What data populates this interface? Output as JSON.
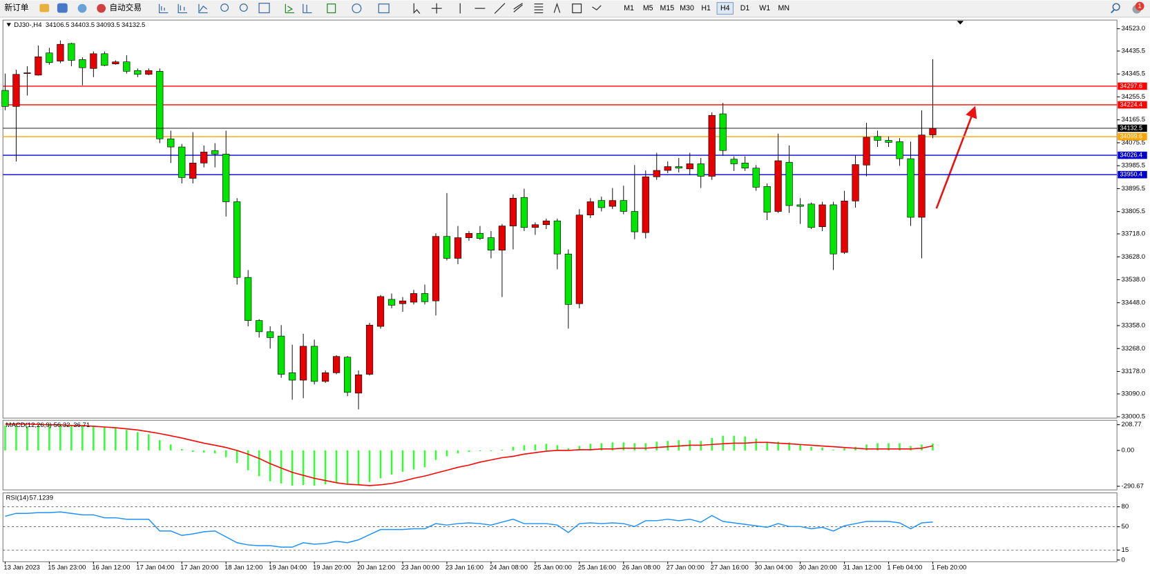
{
  "toolbar": {
    "new_order": "新订单",
    "auto_trading": "自动交易",
    "timeframes": [
      "M1",
      "M5",
      "M15",
      "M30",
      "H1",
      "H4",
      "D1",
      "W1",
      "MN"
    ],
    "active_timeframe": "H4",
    "notification_count": "1"
  },
  "chart_data": [
    {
      "type": "candlestick",
      "symbol": "DJ30-,H4",
      "up_color": "#e60000",
      "down_color": "#00e600",
      "categories": [
        "13 Jan 2023",
        null,
        null,
        null,
        "15 Jan 23:00",
        null,
        null,
        null,
        "16 Jan 12:00",
        null,
        null,
        null,
        "17 Jan 04:00",
        null,
        null,
        null,
        "17 Jan 20:00",
        null,
        null,
        null,
        "18 Jan 12:00",
        null,
        null,
        null,
        "19 Jan 04:00",
        null,
        null,
        null,
        "19 Jan 20:00",
        null,
        null,
        null,
        "20 Jan 12:00",
        null,
        null,
        null,
        "23 Jan 00:00",
        null,
        null,
        null,
        "23 Jan 16:00",
        null,
        null,
        null,
        "24 Jan 08:00",
        null,
        null,
        null,
        "25 Jan 00:00",
        null,
        null,
        null,
        "25 Jan 16:00",
        null,
        null,
        null,
        "26 Jan 08:00",
        null,
        null,
        null,
        "27 Jan 00:00",
        null,
        null,
        null,
        "27 Jan 16:00",
        null,
        null,
        null,
        "30 Jan 04:00",
        null,
        null,
        null,
        "30 Jan 20:00",
        null,
        null,
        null,
        "31 Jan 12:00",
        null,
        null,
        null,
        "1 Feb 04:00",
        null,
        null,
        null,
        "1 Feb 20:00"
      ],
      "open": [
        34281,
        34218,
        34347,
        34341,
        34428,
        34396,
        34465,
        34402,
        34367,
        34425,
        34385,
        34393,
        34359,
        34344,
        34356,
        34091,
        34059,
        33936,
        33996,
        34045,
        34031,
        33844,
        33547,
        33378,
        33334,
        33317,
        33173,
        33144,
        33277,
        33139,
        33173,
        33234,
        33093,
        33167,
        33355,
        33461,
        33444,
        33450,
        33484,
        33455,
        33708,
        33622,
        33703,
        33720,
        33703,
        33654,
        33749,
        33861,
        33743,
        33754,
        33769,
        33639,
        33444,
        33792,
        33849,
        33826,
        33849,
        33806,
        33723,
        33942,
        33967,
        33982,
        33973,
        33993,
        33944,
        34189,
        34011,
        33996,
        33976,
        33904,
        33806,
        33999,
        33832,
        33835,
        33746,
        33832,
        33645,
        33847,
        33988,
        34100,
        34085,
        34080,
        34013,
        33783,
        34106.5
      ],
      "high": [
        34347,
        34362,
        34376,
        34457,
        34448,
        34477,
        34468,
        34411,
        34434,
        34434,
        34399,
        34419,
        34367,
        34367,
        34367,
        34123,
        34071,
        34117,
        34065,
        34074,
        34123,
        33858,
        33576,
        33383,
        33355,
        33360,
        33283,
        33326,
        33303,
        33182,
        33242,
        33239,
        33182,
        33369,
        33478,
        33484,
        33470,
        33498,
        33519,
        33720,
        33878,
        33749,
        33729,
        33749,
        33729,
        33757,
        33873,
        33895,
        33763,
        33778,
        33778,
        33657,
        33815,
        33858,
        33864,
        33898,
        33907,
        33988,
        33967,
        34036,
        34002,
        34016,
        34036,
        34016,
        34195,
        34232,
        34022,
        34022,
        33988,
        33916,
        34111,
        34065,
        33858,
        33841,
        33844,
        33844,
        33887,
        34028,
        34154,
        34123,
        34100,
        34094,
        34080,
        34203,
        34403.5
      ],
      "low": [
        34203,
        34002,
        34261,
        34339,
        34382,
        34388,
        34376,
        34301,
        34333,
        34376,
        34382,
        34347,
        34333,
        34341,
        34074,
        33996,
        33916,
        33916,
        33979,
        33979,
        33786,
        33519,
        33355,
        33311,
        33268,
        33153,
        33067,
        33073,
        33127,
        33133,
        33167,
        33081,
        33029,
        33162,
        33346,
        33426,
        33412,
        33441,
        33441,
        33398,
        33614,
        33599,
        33691,
        33694,
        33622,
        33470,
        33657,
        33729,
        33714,
        33737,
        33579,
        33346,
        33426,
        33780,
        33806,
        33815,
        33795,
        33697,
        33700,
        33930,
        33956,
        33959,
        33950,
        33898,
        33930,
        34025,
        33965,
        33965,
        33887,
        33772,
        33800,
        33800,
        33757,
        33737,
        33729,
        33576,
        33639,
        33821,
        33944,
        34059,
        34059,
        33985,
        33749,
        33622,
        34093.5
      ],
      "close": [
        34218,
        34344,
        34350,
        34413,
        34390,
        34462,
        34399,
        34370,
        34425,
        34379,
        34393,
        34356,
        34344,
        34359,
        34091,
        34059,
        33939,
        33996,
        34039,
        34031,
        33844,
        33547,
        33378,
        33334,
        33311,
        33167,
        33144,
        33277,
        33139,
        33173,
        33237,
        33096,
        33165,
        33360,
        33472,
        33438,
        33455,
        33484,
        33452,
        33708,
        33622,
        33703,
        33720,
        33700,
        33654,
        33749,
        33858,
        33743,
        33754,
        33769,
        33639,
        33441,
        33792,
        33844,
        33821,
        33849,
        33806,
        33726,
        33942,
        33967,
        33982,
        33976,
        33993,
        33944,
        34183,
        34045,
        33993,
        33976,
        33901,
        33803,
        34005,
        33829,
        33826,
        33743,
        33832,
        33639,
        33847,
        33990,
        34097,
        34085,
        34077,
        34013,
        33783,
        34106,
        34132.5
      ],
      "ylim": [
        32995,
        34554
      ],
      "yticks": [
        {
          "value": 34523,
          "label": "34523.0"
        },
        34435.5,
        34345.5,
        34255.5,
        34165.5,
        34075.5,
        33985.5,
        33895.5,
        33805.5,
        {
          "value": 33718,
          "label": "33718.0"
        },
        {
          "value": 33628,
          "label": "33628.0"
        },
        {
          "value": 33538,
          "label": "33538.0"
        },
        {
          "value": 33448,
          "label": "33448.0"
        },
        {
          "value": 33358,
          "label": "33358.0"
        },
        {
          "value": 33268,
          "label": "33268.0"
        },
        {
          "value": 33178,
          "label": "33178.0"
        },
        {
          "value": 33090,
          "label": "33090.0"
        },
        33000.5
      ],
      "hlines": [
        {
          "value": 34297.6,
          "color": "#ff0000"
        },
        {
          "value": 34224.4,
          "color": "#ff0000"
        },
        {
          "value": 34099.6,
          "color": "#ffa500"
        },
        {
          "value": 34026.4,
          "color": "#0000cd"
        },
        {
          "value": 33950.4,
          "color": "#0000cd"
        }
      ]
    },
    {
      "type": "macd",
      "title": "MACD(12,26,9)",
      "ylim": [
        -320.4,
        244.4
      ],
      "yticks": [
        208.77,
        {
          "value": 0,
          "label": "0.00"
        },
        -290.67
      ],
      "series": [
        {
          "color": "#33ff33",
          "values": [
            202,
            202,
            196,
            202,
            202,
            208,
            208,
            202,
            196,
            190,
            179,
            167,
            149,
            131,
            83,
            48,
            12,
            -12,
            -18,
            -24,
            -54,
            -101,
            -161,
            -208,
            -250,
            -268,
            -286,
            -280,
            -286,
            -274,
            -262,
            -274,
            -280,
            -256,
            -226,
            -196,
            -173,
            -155,
            -137,
            -77,
            -48,
            -24,
            -12,
            -6,
            -6,
            6,
            30,
            42,
            48,
            54,
            42,
            18,
            36,
            54,
            59,
            65,
            65,
            59,
            59,
            71,
            77,
            83,
            83,
            77,
            101,
            119,
            119,
            113,
            95,
            71,
            71,
            65,
            48,
            30,
            24,
            6,
            18,
            30,
            48,
            59,
            59,
            59,
            36,
            48,
            56.32
          ]
        },
        {
          "color": "#ff0000",
          "values": [
            214,
            214,
            214,
            211,
            208,
            208,
            202,
            202,
            196,
            190,
            184,
            175,
            166,
            152,
            137,
            119,
            101,
            80,
            59,
            42,
            24,
            0,
            -30,
            -65,
            -107,
            -143,
            -178,
            -202,
            -226,
            -244,
            -262,
            -274,
            -279,
            -285,
            -279,
            -268,
            -250,
            -226,
            -208,
            -184,
            -161,
            -137,
            -119,
            -95,
            -77,
            -59,
            -48,
            -30,
            -18,
            -6,
            0,
            0,
            6,
            6,
            12,
            12,
            18,
            18,
            18,
            24,
            30,
            36,
            42,
            42,
            48,
            54,
            59,
            59,
            65,
            65,
            59,
            54,
            48,
            42,
            36,
            30,
            24,
            18,
            12,
            12,
            12,
            12,
            12,
            18,
            36.71
          ]
        }
      ]
    },
    {
      "type": "line",
      "title": "RSI(14)",
      "color": "#1e90ff",
      "ylim": [
        -2.6,
        100.9
      ],
      "yticks": [
        80,
        50,
        15,
        0
      ],
      "levels": [
        80,
        50,
        15
      ],
      "values": [
        65.7,
        70.1,
        70.1,
        71.2,
        71.2,
        72.3,
        70.1,
        67.9,
        67.9,
        63.5,
        63.5,
        61.3,
        61.3,
        61.3,
        43.6,
        43.6,
        37.0,
        39.2,
        42.5,
        43.6,
        34.8,
        26.0,
        22.7,
        21.6,
        21.6,
        19.4,
        19.4,
        26.0,
        23.8,
        24.9,
        28.2,
        26.0,
        30.4,
        38.1,
        45.8,
        45.8,
        45.8,
        47.0,
        47.0,
        54.7,
        52.5,
        54.7,
        55.8,
        54.7,
        52.5,
        56.9,
        61.3,
        54.7,
        54.7,
        54.7,
        52.5,
        41.4,
        54.7,
        55.8,
        54.7,
        55.8,
        54.7,
        50.3,
        59.1,
        59.1,
        61.3,
        59.1,
        61.3,
        56.9,
        66.8,
        58.0,
        55.8,
        53.6,
        51.4,
        49.2,
        54.7,
        50.3,
        50.3,
        47.0,
        49.2,
        43.6,
        51.4,
        54.7,
        58.0,
        58.0,
        58.0,
        55.8,
        47.0,
        55.8,
        57.1239
      ]
    }
  ]
}
